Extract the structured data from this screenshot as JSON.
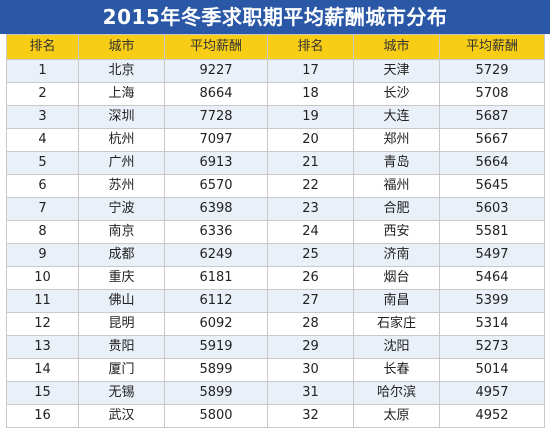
{
  "title": "2015年冬季求职期平均薪酬城市分布",
  "headers": [
    "排名",
    "城市",
    "平均薪酬",
    "排名",
    "城市",
    "平均薪酬"
  ],
  "rows": [
    [
      "1",
      "北京",
      "9227",
      "17",
      "天津",
      "5729"
    ],
    [
      "2",
      "上海",
      "8664",
      "18",
      "长沙",
      "5708"
    ],
    [
      "3",
      "深圳",
      "7728",
      "19",
      "大连",
      "5687"
    ],
    [
      "4",
      "杭州",
      "7097",
      "20",
      "郑州",
      "5667"
    ],
    [
      "5",
      "广州",
      "6913",
      "21",
      "青岛",
      "5664"
    ],
    [
      "6",
      "苏州",
      "6570",
      "22",
      "福州",
      "5645"
    ],
    [
      "7",
      "宁波",
      "6398",
      "23",
      "合肥",
      "5603"
    ],
    [
      "8",
      "南京",
      "6336",
      "24",
      "西安",
      "5581"
    ],
    [
      "9",
      "成都",
      "6249",
      "25",
      "济南",
      "5497"
    ],
    [
      "10",
      "重庆",
      "6181",
      "26",
      "烟台",
      "5464"
    ],
    [
      "11",
      "佛山",
      "6112",
      "27",
      "南昌",
      "5399"
    ],
    [
      "12",
      "昆明",
      "6092",
      "28",
      "石家庄",
      "5314"
    ],
    [
      "13",
      "贵阳",
      "5919",
      "29",
      "沈阳",
      "5273"
    ],
    [
      "14",
      "厦门",
      "5899",
      "30",
      "长春",
      "5014"
    ],
    [
      "15",
      "无锡",
      "5899",
      "31",
      "哈尔滨",
      "4957"
    ],
    [
      "16",
      "武汉",
      "5800",
      "32",
      "太原",
      "4952"
    ]
  ],
  "colors": {
    "title_bg": "#2a58a6",
    "header_bg": "#f7cd16",
    "stripe_bg": "#eaf0f8",
    "border": "#c9c9c9"
  }
}
